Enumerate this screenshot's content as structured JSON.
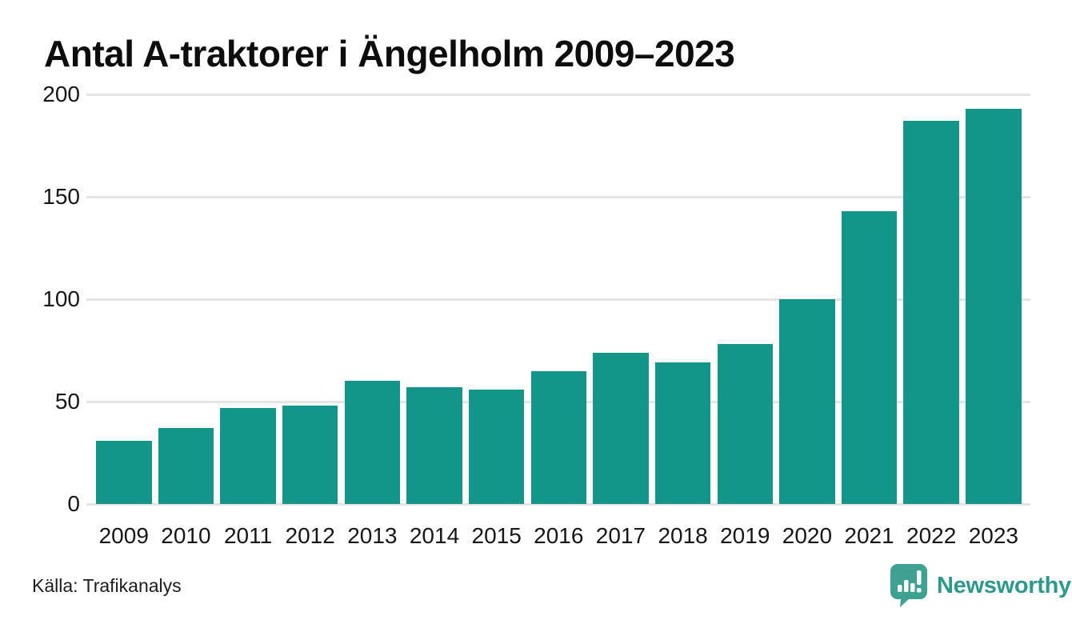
{
  "chart_data": {
    "type": "bar",
    "title": "Antal A-traktorer i Ängelholm 2009–2023",
    "categories": [
      "2009",
      "2010",
      "2011",
      "2012",
      "2013",
      "2014",
      "2015",
      "2016",
      "2017",
      "2018",
      "2019",
      "2020",
      "2021",
      "2022",
      "2023"
    ],
    "values": [
      31,
      37,
      47,
      48,
      60,
      57,
      56,
      65,
      74,
      69,
      78,
      100,
      143,
      187,
      193
    ],
    "xlabel": "",
    "ylabel": "",
    "yticks": [
      0,
      50,
      100,
      150,
      200
    ],
    "ylim": [
      0,
      200
    ],
    "grid": "horizontal gridlines on",
    "legend": "none",
    "bar_color": "#14958a",
    "gridline_color": "#e4e4e4",
    "text_color": "#161616"
  },
  "footer": {
    "source": "Källa: Trafikanalys",
    "brand": "Newsworthy",
    "brand_color": "#2d998b",
    "badge_color": "#3fa191",
    "badge_icon": "newsworthy-speech-bubble-bar-chart-icon"
  }
}
